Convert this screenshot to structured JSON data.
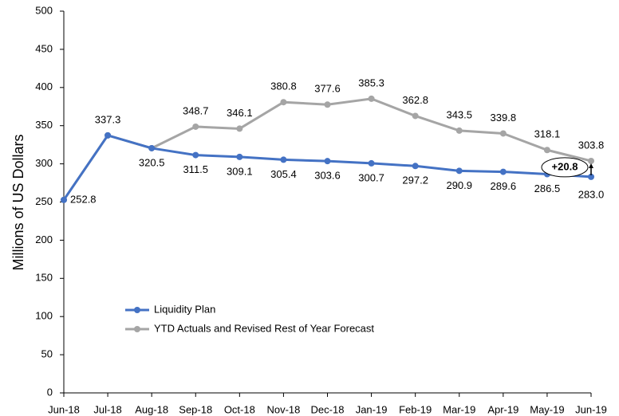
{
  "chart_data": {
    "type": "line",
    "y_label": "Millions of US Dollars",
    "categories": [
      "Jun-18",
      "Jul-18",
      "Aug-18",
      "Sep-18",
      "Oct-18",
      "Nov-18",
      "Dec-18",
      "Jan-19",
      "Feb-19",
      "Mar-19",
      "Apr-19",
      "May-19",
      "Jun-19"
    ],
    "series": [
      {
        "name": "Liquidity Plan",
        "color": "#4472c4",
        "values": [
          252.8,
          337.3,
          320.5,
          311.5,
          309.1,
          305.4,
          303.6,
          300.7,
          297.2,
          290.9,
          289.6,
          286.5,
          283.0
        ],
        "value_labels": [
          "252.8",
          "337.3",
          "320.5",
          "311.5",
          "309.1",
          "305.4",
          "303.6",
          "300.7",
          "297.2",
          "290.9",
          "289.6",
          "286.5",
          "283.0"
        ]
      },
      {
        "name": "YTD Actuals and Revised Rest of Year Forecast",
        "color": "#a5a5a5",
        "values": [
          252.8,
          337.3,
          320.5,
          348.7,
          346.1,
          380.8,
          377.6,
          385.3,
          362.8,
          343.5,
          339.8,
          318.1,
          303.8
        ],
        "value_labels": [
          null,
          null,
          null,
          "348.7",
          "346.1",
          "380.8",
          "377.6",
          "385.3",
          "362.8",
          "343.5",
          "339.8",
          "318.1",
          "303.8"
        ]
      }
    ],
    "annotation": "+20.8",
    "ylim": [
      0,
      500
    ],
    "yticks": [
      0,
      50,
      100,
      150,
      200,
      250,
      300,
      350,
      400,
      450,
      500
    ],
    "grid": false,
    "legend": "lower left"
  }
}
